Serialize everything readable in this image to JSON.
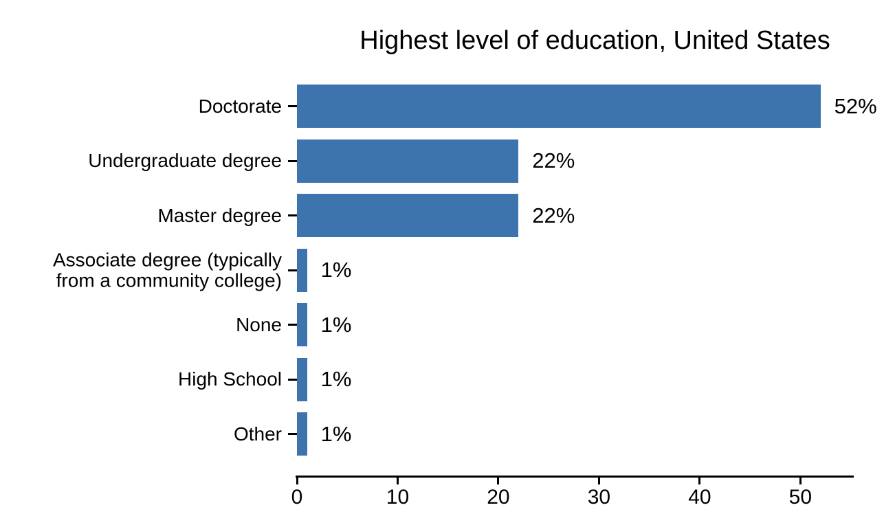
{
  "chart_data": {
    "type": "bar",
    "orientation": "horizontal",
    "title": "Highest level of education, United States",
    "categories": [
      "Doctorate",
      "Undergraduate degree",
      "Master degree",
      "Associate degree (typically\nfrom a community college)",
      "None",
      "High School",
      "Other"
    ],
    "values": [
      52,
      22,
      22,
      1,
      1,
      1,
      1
    ],
    "value_labels": [
      "52%",
      "22%",
      "22%",
      "1%",
      "1%",
      "1%",
      "1%"
    ],
    "x_ticks": [
      "0",
      "10",
      "20",
      "30",
      "40",
      "50"
    ],
    "x_tick_values": [
      0,
      10,
      20,
      30,
      40,
      50
    ],
    "xlim": [
      0,
      55.3
    ],
    "xlabel": "",
    "ylabel": "",
    "grid": false,
    "legend": false,
    "bar_color": "#3d74ad",
    "axis_color": "#000000",
    "text_color": "#000000",
    "background": "#ffffff"
  }
}
